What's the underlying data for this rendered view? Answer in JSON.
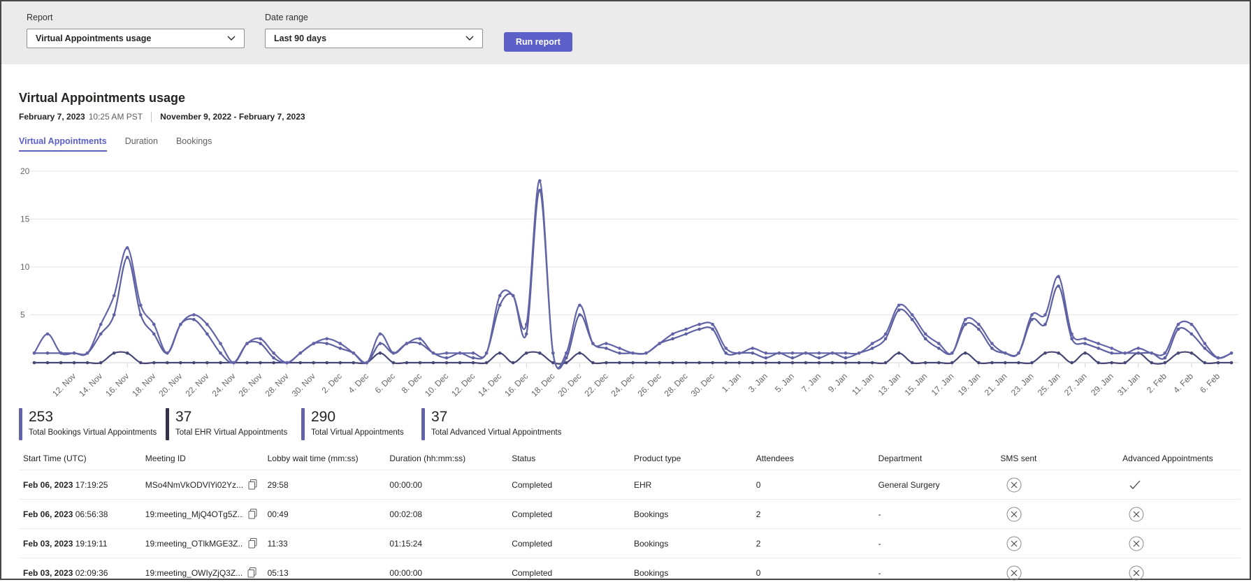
{
  "topbar": {
    "report_label": "Report",
    "report_value": "Virtual Appointments usage",
    "date_range_label": "Date range",
    "date_range_value": "Last 90 days",
    "run_button": "Run report"
  },
  "header": {
    "title": "Virtual Appointments usage",
    "generated_date": "February 7, 2023",
    "generated_time": "10:25 AM PST",
    "date_range": "November 9, 2022 - February 7, 2023"
  },
  "tabs": [
    {
      "label": "Virtual Appointments",
      "active": true
    },
    {
      "label": "Duration",
      "active": false
    },
    {
      "label": "Bookings",
      "active": false
    }
  ],
  "chart_data": {
    "type": "line",
    "title": "Virtual Appointments usage over last 90 days",
    "xlabel": "",
    "ylabel": "",
    "ylim": [
      0,
      20
    ],
    "y_ticks": [
      5,
      10,
      15,
      20
    ],
    "grid": "horizontal",
    "legend_position": "none",
    "x_tick_start_index": 3,
    "x_tick_step": 2,
    "x_tick_labels": [
      "12. Nov",
      "14. Nov",
      "16. Nov",
      "18. Nov",
      "20. Nov",
      "22. Nov",
      "24. Nov",
      "26. Nov",
      "28. Nov",
      "30. Nov",
      "2. Dec",
      "4. Dec",
      "6. Dec",
      "8. Dec",
      "10. Dec",
      "12. Dec",
      "14. Dec",
      "16. Dec",
      "18. Dec",
      "20. Dec",
      "22. Dec",
      "24. Dec",
      "26. Dec",
      "28. Dec",
      "30. Dec",
      "1. Jan",
      "3. Jan",
      "5. Jan",
      "7. Jan",
      "9. Jan",
      "11. Jan",
      "13. Jan",
      "15. Jan",
      "17. Jan",
      "19. Jan",
      "21. Jan",
      "23. Jan",
      "25. Jan",
      "27. Jan",
      "29. Jan",
      "31. Jan",
      "2. Feb",
      "4. Feb",
      "6. Feb"
    ],
    "series": [
      {
        "name": "Total Virtual Appointments",
        "color": "#6264a7",
        "values": [
          1,
          3,
          1,
          1,
          1,
          4,
          7,
          12,
          6,
          4,
          1,
          4,
          5,
          4,
          2,
          0,
          2,
          2.5,
          1,
          0,
          1,
          2,
          2.5,
          2,
          1,
          0,
          3,
          1,
          2,
          2.5,
          1,
          1,
          1,
          1,
          1,
          7,
          7,
          4,
          19,
          1,
          1,
          6,
          2,
          2,
          1.5,
          1,
          1,
          2,
          3,
          3.5,
          4,
          4,
          1.5,
          1,
          1.5,
          1,
          1,
          1,
          1,
          1,
          1,
          1,
          1,
          2,
          3,
          6,
          5,
          3,
          2,
          1,
          4.5,
          4,
          2,
          1,
          1,
          5,
          5,
          9,
          3,
          2.5,
          2,
          1.5,
          1,
          1.5,
          1,
          1,
          4,
          4,
          2,
          0.5,
          1
        ]
      },
      {
        "name": "Bookings Virtual Appointments",
        "color": "#5d60a0",
        "values": [
          1,
          1,
          1,
          1,
          1,
          3,
          5,
          11,
          5,
          3,
          1,
          4,
          4.5,
          3,
          1,
          0,
          2,
          2,
          0.5,
          0,
          1,
          2,
          2,
          1.5,
          1,
          0,
          2,
          1,
          2,
          2,
          1,
          0.5,
          1,
          0.5,
          1,
          6,
          7,
          3,
          18,
          1,
          0.5,
          5,
          2,
          1.5,
          1,
          1,
          1,
          2,
          2.5,
          3,
          3.5,
          3.5,
          1,
          1,
          1,
          0.5,
          1,
          0.5,
          1,
          0.5,
          1,
          0.5,
          1,
          1.5,
          2.5,
          5.5,
          4.5,
          2.5,
          1.5,
          1,
          4,
          3.5,
          1.5,
          1,
          1,
          4.5,
          4,
          8,
          2.5,
          2,
          1.5,
          1,
          1,
          1,
          1,
          0.5,
          3.5,
          3,
          1.5,
          0.5,
          1
        ]
      },
      {
        "name": "EHR Virtual Appointments",
        "color": "#464775",
        "values": [
          0,
          0,
          0,
          0,
          0,
          0,
          1,
          1,
          0,
          0,
          0,
          0,
          0,
          0,
          0,
          0,
          0,
          0,
          0,
          0,
          0,
          0,
          0,
          0,
          0,
          0,
          1,
          0,
          0,
          0,
          0,
          0,
          0,
          0,
          0,
          1,
          0,
          1,
          1,
          0,
          0,
          1,
          0,
          0,
          0,
          0,
          0,
          0,
          0,
          0,
          0,
          0,
          0,
          0,
          0,
          0,
          0,
          0,
          0,
          0,
          0,
          0,
          0,
          0,
          0,
          1,
          0,
          0,
          0,
          0,
          1,
          0,
          0,
          0,
          0,
          0,
          1,
          1,
          0,
          1,
          0,
          0,
          0,
          1,
          0,
          0,
          1,
          1,
          0,
          0,
          0
        ]
      }
    ]
  },
  "tiles": [
    {
      "value": "253",
      "label": "Total Bookings Virtual Appointments",
      "color": "#6264a7"
    },
    {
      "value": "37",
      "label": "Total EHR Virtual Appointments",
      "color": "#33344a"
    },
    {
      "value": "290",
      "label": "Total Virtual Appointments",
      "color": "#6264a7"
    },
    {
      "value": "37",
      "label": "Total Advanced Virtual Appointments",
      "color": "#6264a7"
    }
  ],
  "table": {
    "headers": [
      "Start Time (UTC)",
      "Meeting ID",
      "Lobby wait time (mm:ss)",
      "Duration (hh:mm:ss)",
      "Status",
      "Product type",
      "Attendees",
      "Department",
      "SMS sent",
      "Advanced Appointments"
    ],
    "rows": [
      {
        "date": "Feb 06, 2023",
        "time": "17:19:25",
        "meeting_id": "MSo4NmVkODVlYi02Yz...",
        "lobby_wait": "29:58",
        "duration": "00:00:00",
        "status": "Completed",
        "product_type": "EHR",
        "attendees": "0",
        "department": "General Surgery",
        "sms_sent": "x-circle",
        "advanced": "check"
      },
      {
        "date": "Feb 06, 2023",
        "time": "06:56:38",
        "meeting_id": "19:meeting_MjQ4OTg5Z...",
        "lobby_wait": "00:49",
        "duration": "00:02:08",
        "status": "Completed",
        "product_type": "Bookings",
        "attendees": "2",
        "department": "-",
        "sms_sent": "x-circle",
        "advanced": "x-circle"
      },
      {
        "date": "Feb 03, 2023",
        "time": "19:19:11",
        "meeting_id": "19:meeting_OTlkMGE3Z...",
        "lobby_wait": "11:33",
        "duration": "01:15:24",
        "status": "Completed",
        "product_type": "Bookings",
        "attendees": "2",
        "department": "-",
        "sms_sent": "x-circle",
        "advanced": "x-circle"
      },
      {
        "date": "Feb 03, 2023",
        "time": "02:09:36",
        "meeting_id": "19:meeting_OWIyZjQ3Z...",
        "lobby_wait": "05:13",
        "duration": "00:00:00",
        "status": "Completed",
        "product_type": "Bookings",
        "attendees": "0",
        "department": "-",
        "sms_sent": "x-circle",
        "advanced": "x-circle"
      }
    ]
  },
  "colors": {
    "accent": "#5b5fc7",
    "chart_line": "#6264a7",
    "topbar_bg": "#ebebeb",
    "tile_dark": "#33344a"
  }
}
